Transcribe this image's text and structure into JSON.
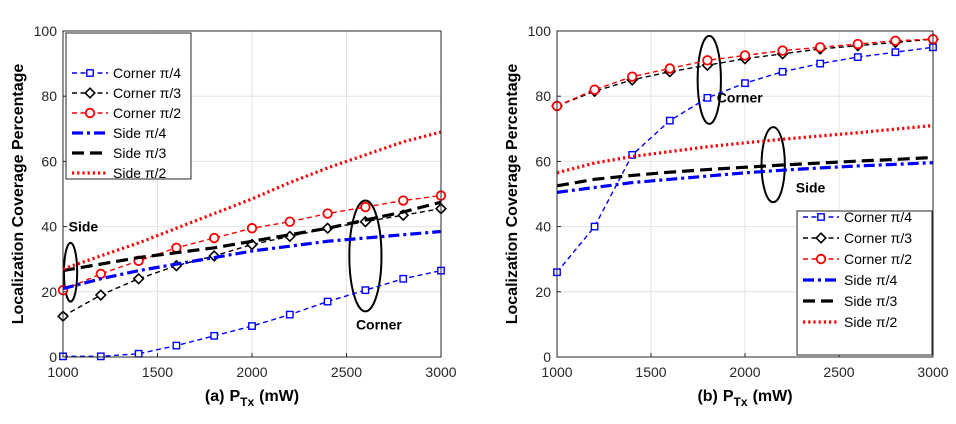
{
  "chart_data": [
    {
      "type": "line",
      "caption": "(a)",
      "xlabel": "P",
      "xlabel_sub": "Tx",
      "xlabel_unit": "(mW)",
      "ylabel": "Localization Coverage Percentage",
      "xlim": [
        1000,
        3000
      ],
      "ylim": [
        0,
        100
      ],
      "xticks": [
        1000,
        1500,
        2000,
        2500,
        3000
      ],
      "yticks": [
        0,
        20,
        40,
        60,
        80,
        100
      ],
      "grid": true,
      "legend_position": "top-left",
      "annotations": [
        {
          "text": "Side",
          "x": 1030,
          "y": 38.5
        },
        {
          "text": "Corner",
          "x": 2550,
          "y": 8.5
        }
      ],
      "ellipses": [
        {
          "cx": 1040,
          "cy": 26,
          "rx": 35,
          "ry": 9
        },
        {
          "cx": 2600,
          "cy": 31,
          "rx": 85,
          "ry": 17
        }
      ],
      "series": [
        {
          "name": "Corner π/4",
          "style": "corner",
          "angle": "π/4",
          "color": "#0000ff",
          "marker": "square",
          "x": [
            1000,
            1200,
            1400,
            1600,
            1800,
            2000,
            2200,
            2400,
            2600,
            2800,
            3000
          ],
          "y": [
            0.2,
            0.2,
            1,
            3.5,
            6.5,
            9.5,
            13,
            17,
            20.5,
            24,
            26.5
          ]
        },
        {
          "name": "Corner π/3",
          "style": "corner",
          "angle": "π/3",
          "color": "#000000",
          "marker": "diamond",
          "x": [
            1000,
            1200,
            1400,
            1600,
            1800,
            2000,
            2200,
            2400,
            2600,
            2800,
            3000
          ],
          "y": [
            12.5,
            19,
            24,
            28,
            31,
            34.5,
            37,
            39.5,
            41.5,
            43.5,
            45.5
          ]
        },
        {
          "name": "Corner π/2",
          "style": "corner",
          "angle": "π/2",
          "color": "#ff0000",
          "marker": "circle",
          "x": [
            1000,
            1200,
            1400,
            1600,
            1800,
            2000,
            2200,
            2400,
            2600,
            2800,
            3000
          ],
          "y": [
            20.5,
            25.5,
            29.5,
            33.5,
            36.5,
            39.5,
            41.5,
            44,
            46,
            48,
            49.5
          ]
        },
        {
          "name": "Side π/4",
          "style": "side",
          "angle": "π/4",
          "color": "#0000ff",
          "dash": "dashdot",
          "x": [
            1000,
            1200,
            1400,
            1600,
            1800,
            2000,
            2200,
            2400,
            2600,
            2800,
            3000
          ],
          "y": [
            21,
            24,
            26.5,
            28.5,
            30.5,
            32.5,
            34,
            35.5,
            36.5,
            37.5,
            38.5
          ]
        },
        {
          "name": "Side π/3",
          "style": "side",
          "angle": "π/3",
          "color": "#000000",
          "dash": "dash",
          "x": [
            1000,
            1200,
            1400,
            1600,
            1800,
            2000,
            2200,
            2400,
            2600,
            2800,
            3000
          ],
          "y": [
            26.5,
            28.5,
            30.5,
            32,
            33.5,
            35.5,
            37.5,
            39.5,
            42,
            44.5,
            47.5
          ]
        },
        {
          "name": "Side π/2",
          "style": "side",
          "angle": "π/2",
          "color": "#ff0000",
          "dash": "dot",
          "x": [
            1000,
            1200,
            1400,
            1600,
            1800,
            2000,
            2200,
            2400,
            2600,
            2800,
            3000
          ],
          "y": [
            27,
            31,
            35,
            39.5,
            44,
            48.5,
            53.5,
            58,
            62,
            66,
            69
          ]
        }
      ]
    },
    {
      "type": "line",
      "caption": "(b)",
      "xlabel": "P",
      "xlabel_sub": "Tx",
      "xlabel_unit": "(mW)",
      "ylabel": "Localization Coverage Percentage",
      "xlim": [
        1000,
        3000
      ],
      "ylim": [
        0,
        100
      ],
      "xticks": [
        1000,
        1500,
        2000,
        2500,
        3000
      ],
      "yticks": [
        0,
        20,
        40,
        60,
        80,
        100
      ],
      "grid": true,
      "legend_position": "bottom-right",
      "annotations": [
        {
          "text": "Corner",
          "x": 1850,
          "y": 78
        },
        {
          "text": "Side",
          "x": 2270,
          "y": 50.5
        }
      ],
      "ellipses": [
        {
          "cx": 1810,
          "cy": 85,
          "rx": 62,
          "ry": 13.5
        },
        {
          "cx": 2150,
          "cy": 59,
          "rx": 62,
          "ry": 11.5
        }
      ],
      "series": [
        {
          "name": "Corner π/4",
          "style": "corner",
          "angle": "π/4",
          "color": "#0000ff",
          "marker": "square",
          "x": [
            1000,
            1200,
            1400,
            1600,
            1800,
            2000,
            2200,
            2400,
            2600,
            2800,
            3000
          ],
          "y": [
            26,
            40,
            62,
            72.5,
            79.5,
            84,
            87.5,
            90,
            92,
            93.5,
            95
          ]
        },
        {
          "name": "Corner π/3",
          "style": "corner",
          "angle": "π/3",
          "color": "#000000",
          "marker": "diamond",
          "x": [
            1000,
            1200,
            1400,
            1600,
            1800,
            2000,
            2200,
            2400,
            2600,
            2800,
            3000
          ],
          "y": [
            77,
            81.5,
            85,
            87.5,
            89.5,
            91.5,
            93,
            94.5,
            95.5,
            96.5,
            97.5
          ]
        },
        {
          "name": "Corner π/2",
          "style": "corner",
          "angle": "π/2",
          "color": "#ff0000",
          "marker": "circle",
          "x": [
            1000,
            1200,
            1400,
            1600,
            1800,
            2000,
            2200,
            2400,
            2600,
            2800,
            3000
          ],
          "y": [
            77,
            82,
            86,
            88.5,
            91,
            92.5,
            94,
            95,
            96,
            97,
            97.5
          ]
        },
        {
          "name": "Side π/4",
          "style": "side",
          "angle": "π/4",
          "color": "#0000ff",
          "dash": "dashdot",
          "x": [
            1000,
            1200,
            1400,
            1600,
            1800,
            2000,
            2200,
            2400,
            2600,
            2800,
            3000
          ],
          "y": [
            50.5,
            52,
            53.5,
            54.5,
            55.5,
            56.5,
            57.3,
            58,
            58.6,
            59.1,
            59.6
          ]
        },
        {
          "name": "Side π/3",
          "style": "side",
          "angle": "π/3",
          "color": "#000000",
          "dash": "dash",
          "x": [
            1000,
            1200,
            1400,
            1600,
            1800,
            2000,
            2200,
            2400,
            2600,
            2800,
            3000
          ],
          "y": [
            52.5,
            54.5,
            55.7,
            56.7,
            57.5,
            58.2,
            58.9,
            59.5,
            60.1,
            60.6,
            61.2
          ]
        },
        {
          "name": "Side π/2",
          "style": "side",
          "angle": "π/2",
          "color": "#ff0000",
          "dash": "dot",
          "x": [
            1000,
            1200,
            1400,
            1600,
            1800,
            2000,
            2200,
            2400,
            2600,
            2800,
            3000
          ],
          "y": [
            56.5,
            59.5,
            61.5,
            63,
            64.5,
            65.7,
            66.8,
            67.8,
            68.8,
            69.9,
            71
          ]
        }
      ]
    }
  ]
}
